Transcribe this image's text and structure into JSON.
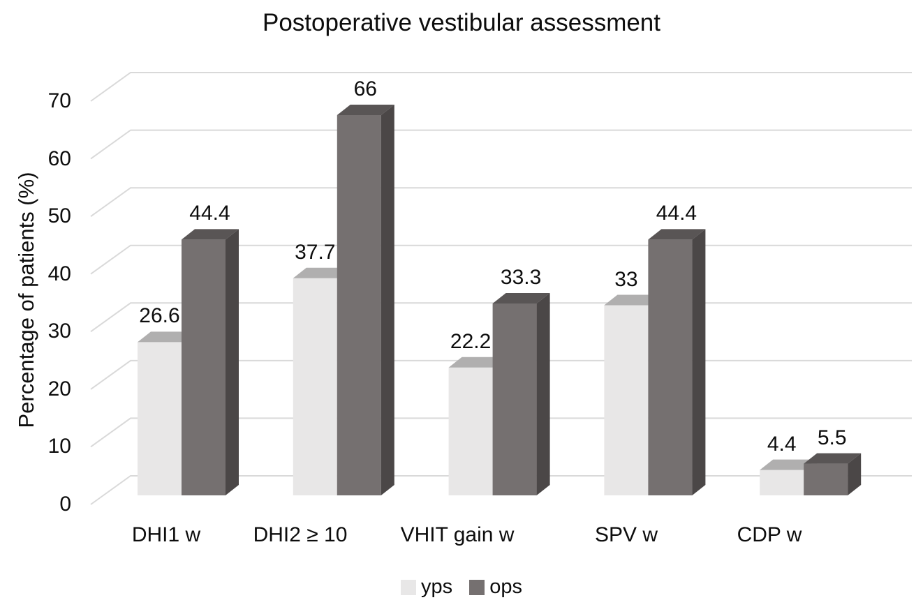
{
  "chart_data": {
    "type": "bar",
    "variant": "3d-clustered-column",
    "title": "Postoperative vestibular assessment",
    "ylabel": "Percentage of patients (%)",
    "xlabel": "",
    "ylim": [
      0,
      70
    ],
    "ytick_step": 10,
    "yticks": [
      "0",
      "10",
      "20",
      "30",
      "40",
      "50",
      "60",
      "70"
    ],
    "grid": true,
    "gridline_color": "#d9d9d9",
    "text_color": "#0d0d0d",
    "background_color": "#ffffff",
    "legend_position": "bottom",
    "categories": [
      "DHI1 w",
      "DHI2 ≥ 10",
      "VHIT gain w",
      "SPV w",
      "CDP w"
    ],
    "series": [
      {
        "name": "yps",
        "values": [
          26.6,
          37.7,
          22.2,
          33,
          4.4
        ],
        "labels": [
          "26.6",
          "37.7",
          "22.2",
          "33",
          "4.4"
        ],
        "color_front": "#e8e7e7",
        "color_top": "#b0afaf",
        "color_side": "#cfcece"
      },
      {
        "name": "ops",
        "values": [
          44.4,
          66,
          33.3,
          44.4,
          5.5
        ],
        "labels": [
          "44.4",
          "66",
          "33.3",
          "44.4",
          "5.5"
        ],
        "color_front": "#757070",
        "color_top": "#595555",
        "color_side": "#4b4747"
      }
    ]
  }
}
